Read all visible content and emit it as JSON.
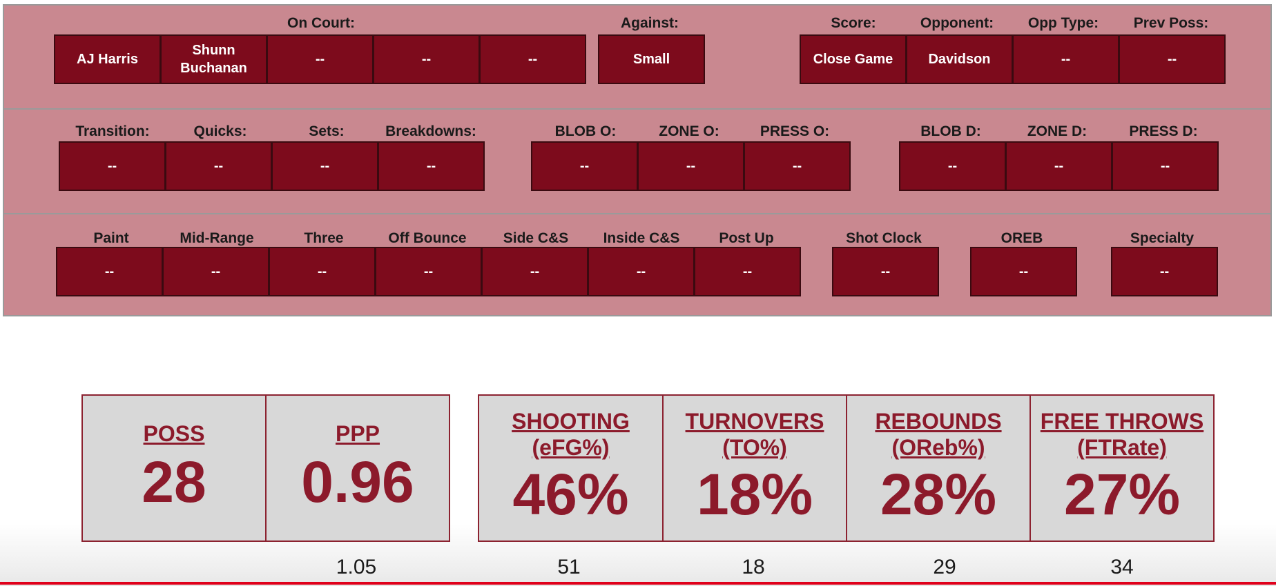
{
  "row1": {
    "labels": {
      "on_court": "On Court:",
      "against": "Against:",
      "score": "Score:",
      "opponent": "Opponent:",
      "opp_type": "Opp Type:",
      "prev_poss": "Prev Poss:"
    },
    "on_court": [
      "AJ Harris",
      "Shunn\nBuchanan",
      "--",
      "--",
      "--"
    ],
    "against": "Small",
    "score": "Close Game",
    "opponent": "Davidson",
    "opp_type": "--",
    "prev_poss": "--"
  },
  "row2": {
    "labels": [
      "Transition:",
      "Quicks:",
      "Sets:",
      "Breakdowns:",
      "BLOB O:",
      "ZONE O:",
      "PRESS O:",
      "BLOB D:",
      "ZONE D:",
      "PRESS D:"
    ],
    "values": [
      "--",
      "--",
      "--",
      "--",
      "--",
      "--",
      "--",
      "--",
      "--",
      "--"
    ]
  },
  "row3": {
    "labels": [
      "Paint",
      "Mid-Range",
      "Three",
      "Off Bounce",
      "Side C&S",
      "Inside C&S",
      "Post Up",
      "Shot Clock",
      "OREB",
      "Specialty"
    ],
    "values": [
      "--",
      "--",
      "--",
      "--",
      "--",
      "--",
      "--",
      "--",
      "--",
      "--"
    ]
  },
  "stats": [
    {
      "title": "POSS",
      "sub": "",
      "value": "28",
      "compare": ""
    },
    {
      "title": "PPP",
      "sub": "",
      "value": "0.96",
      "compare": "1.05"
    },
    {
      "title": "SHOOTING",
      "sub": "(eFG%)",
      "value": "46%",
      "compare": "51"
    },
    {
      "title": "TURNOVERS",
      "sub": "(TO%)",
      "value": "18%",
      "compare": "18"
    },
    {
      "title": "REBOUNDS",
      "sub": "(OReb%)",
      "value": "28%",
      "compare": "29"
    },
    {
      "title": "FREE THROWS",
      "sub": "(FTRate)",
      "value": "27%",
      "compare": "34"
    }
  ],
  "colors": {
    "panel": "#c98890",
    "box": "#7d0b1c",
    "stat_text": "#8c1a2b",
    "stat_bg": "#d8d8d8",
    "bottom_line": "#e0001b"
  }
}
